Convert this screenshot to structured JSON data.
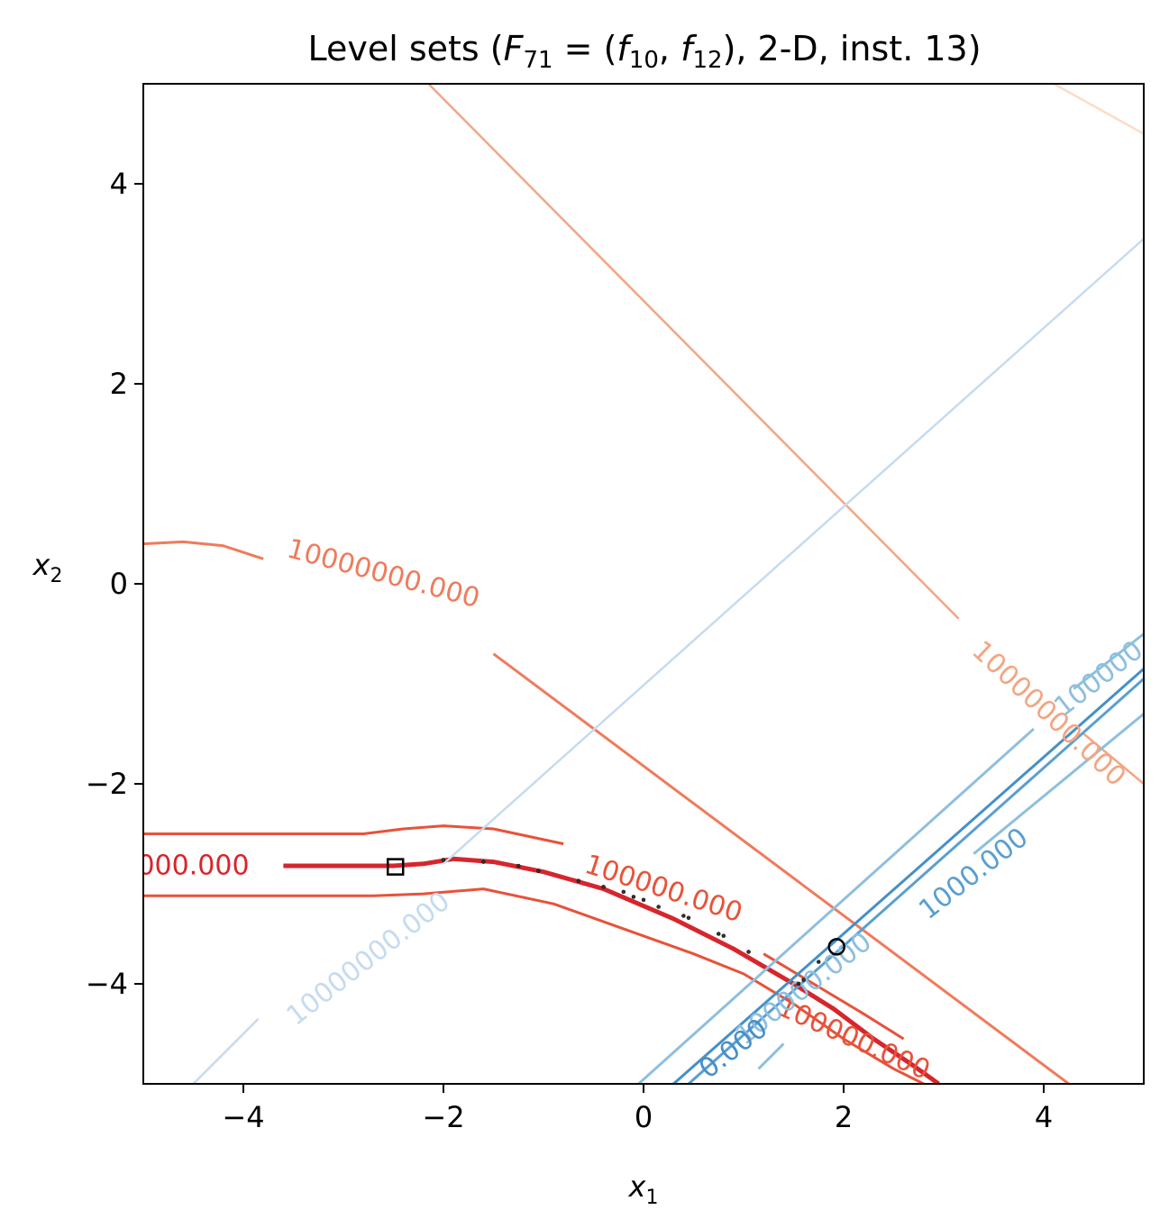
{
  "chart_data": {
    "type": "line",
    "title": {
      "prefix": "Level sets (",
      "F": "F",
      "F_sub": "71",
      "eq": " = (",
      "f1": "f",
      "f1_sub": "10",
      "comma": ", ",
      "f2": "f",
      "f2_sub": "12",
      "suffix": "), 2-D, inst. 13)"
    },
    "xlabel": {
      "var": "x",
      "sub": "1"
    },
    "ylabel": {
      "var": "x",
      "sub": "2"
    },
    "xlim": [
      -5,
      5
    ],
    "ylim": [
      -5,
      5
    ],
    "xticks": [
      -4,
      -2,
      0,
      2,
      4
    ],
    "yticks": [
      -4,
      -2,
      0,
      2,
      4
    ],
    "tick_labels_x": [
      "−4",
      "−2",
      "0",
      "2",
      "4"
    ],
    "tick_labels_y": [
      "−4",
      "−2",
      "0",
      "2",
      "4"
    ],
    "grid": false,
    "series": [
      {
        "group": "f12",
        "color": "#fddbc7",
        "width": 2.5,
        "points": [
          [
            4.1,
            5.0
          ],
          [
            5.0,
            4.5
          ]
        ]
      },
      {
        "group": "f12",
        "color": "#f4a582",
        "width": 2.5,
        "points": [
          [
            -2.15,
            5.0
          ],
          [
            3.15,
            -0.35
          ]
        ]
      },
      {
        "group": "f12",
        "color": "#f4a582",
        "width": 2.5,
        "points": [
          [
            4.4,
            -1.5
          ],
          [
            5.0,
            -2.0
          ]
        ]
      },
      {
        "group": "f12",
        "color": "#ef7b5b",
        "width": 3,
        "points": [
          [
            -5.0,
            0.4
          ],
          [
            -4.6,
            0.42
          ],
          [
            -4.2,
            0.38
          ],
          [
            -3.8,
            0.25
          ]
        ]
      },
      {
        "group": "f12",
        "color": "#ef7b5b",
        "width": 3,
        "points": [
          [
            -1.5,
            -0.7
          ],
          [
            4.25,
            -5.0
          ]
        ]
      },
      {
        "group": "f12",
        "color": "#e8523a",
        "width": 3,
        "points": [
          [
            -5.0,
            -2.5
          ],
          [
            -2.8,
            -2.5
          ],
          [
            -2.4,
            -2.45
          ],
          [
            -2.0,
            -2.42
          ],
          [
            -1.5,
            -2.45
          ],
          [
            -0.8,
            -2.6
          ]
        ]
      },
      {
        "group": "f12",
        "color": "#e8523a",
        "width": 3,
        "points": [
          [
            1.2,
            -3.7
          ],
          [
            1.7,
            -4.0
          ],
          [
            2.2,
            -4.3
          ],
          [
            2.6,
            -4.55
          ]
        ]
      },
      {
        "group": "f12",
        "color": "#e8523a",
        "width": 3,
        "points": [
          [
            -5.0,
            -3.12
          ],
          [
            -2.7,
            -3.12
          ],
          [
            -2.2,
            -3.1
          ],
          [
            -1.6,
            -3.05
          ],
          [
            -0.9,
            -3.2
          ],
          [
            -0.2,
            -3.45
          ],
          [
            0.5,
            -3.7
          ],
          [
            1.0,
            -3.9
          ],
          [
            1.5,
            -4.2
          ],
          [
            2.0,
            -4.55
          ],
          [
            2.5,
            -4.85
          ],
          [
            2.8,
            -5.0
          ]
        ]
      },
      {
        "group": "f12",
        "color": "#d6262d",
        "width": 5,
        "points": [
          [
            -3.6,
            -2.82
          ],
          [
            -2.5,
            -2.82
          ],
          [
            -2.2,
            -2.8
          ],
          [
            -1.9,
            -2.75
          ],
          [
            -1.5,
            -2.78
          ],
          [
            -1.0,
            -2.88
          ],
          [
            -0.4,
            -3.05
          ],
          [
            0.3,
            -3.35
          ],
          [
            0.9,
            -3.65
          ],
          [
            1.5,
            -4.0
          ],
          [
            1.9,
            -4.25
          ],
          [
            2.3,
            -4.55
          ],
          [
            2.7,
            -4.82
          ],
          [
            2.95,
            -5.0
          ]
        ]
      },
      {
        "group": "f10",
        "color": "#c6dbef",
        "width": 2.5,
        "points": [
          [
            -4.5,
            -5.0
          ],
          [
            -3.85,
            -4.35
          ]
        ]
      },
      {
        "group": "f10",
        "color": "#c6dbef",
        "width": 2.5,
        "points": [
          [
            -2.0,
            -2.8
          ],
          [
            5.0,
            3.45
          ]
        ]
      },
      {
        "group": "f10",
        "color": "#8ebfde",
        "width": 3,
        "points": [
          [
            -0.05,
            -5.0
          ],
          [
            3.9,
            -1.45
          ]
        ]
      },
      {
        "group": "f10",
        "color": "#8ebfde",
        "width": 3,
        "points": [
          [
            4.3,
            -1.05
          ],
          [
            5.0,
            -0.5
          ]
        ]
      },
      {
        "group": "f10",
        "color": "#8ebfde",
        "width": 3,
        "points": [
          [
            1.15,
            -4.85
          ],
          [
            1.4,
            -4.6
          ]
        ]
      },
      {
        "group": "f10",
        "color": "#8ebfde",
        "width": 3,
        "points": [
          [
            3.3,
            -2.7
          ],
          [
            5.0,
            -1.3
          ]
        ]
      },
      {
        "group": "f10",
        "color": "#5a9fd0",
        "width": 3,
        "points": [
          [
            0.45,
            -5.0
          ],
          [
            5.0,
            -0.95
          ]
        ]
      },
      {
        "group": "f10",
        "color": "#4590c8",
        "width": 3,
        "points": [
          [
            0.3,
            -5.0
          ],
          [
            5.0,
            -0.85
          ]
        ]
      }
    ],
    "contour_labels": [
      {
        "text": "10000000.000",
        "color": "#f4a582",
        "x": 4.05,
        "y": -1.3,
        "angle": 43
      },
      {
        "text": "10000000.000",
        "color": "#ef7b5b",
        "x": -2.6,
        "y": 0.1,
        "angle": 15
      },
      {
        "text": "000.000",
        "color": "#d6262d",
        "x": -4.5,
        "y": -2.82,
        "angle": 0
      },
      {
        "text": "100000.000",
        "color": "#e8523a",
        "x": 0.2,
        "y": -3.05,
        "angle": 18
      },
      {
        "text": "100000.000",
        "color": "#e8523a",
        "x": 2.1,
        "y": -4.55,
        "angle": 24
      },
      {
        "text": "10000000.000",
        "color": "#c6dbef",
        "x": -2.75,
        "y": -3.75,
        "angle": -38
      },
      {
        "text": "100000",
        "color": "#8ebfde",
        "x": 4.55,
        "y": -0.95,
        "angle": -38
      },
      {
        "text": "1000.000",
        "color": "#5a9fd0",
        "x": 3.3,
        "y": -2.9,
        "angle": -38
      },
      {
        "text": "100000.000",
        "color": "#8ebfde",
        "x": 1.6,
        "y": -4.05,
        "angle": -38
      },
      {
        "text": "0.000",
        "color": "#4590c8",
        "x": 0.9,
        "y": -4.65,
        "angle": -38
      }
    ],
    "path_points": [
      [
        -2.0,
        -2.76
      ],
      [
        -1.6,
        -2.78
      ],
      [
        -1.25,
        -2.82
      ],
      [
        -1.05,
        -2.87
      ],
      [
        -0.65,
        -2.97
      ],
      [
        -0.4,
        -3.03
      ],
      [
        -0.2,
        -3.08
      ],
      [
        -0.1,
        -3.13
      ],
      [
        0.0,
        -3.16
      ],
      [
        0.15,
        -3.23
      ],
      [
        0.4,
        -3.32
      ],
      [
        0.45,
        -3.34
      ],
      [
        0.75,
        -3.5
      ],
      [
        0.8,
        -3.52
      ],
      [
        1.05,
        -3.68
      ],
      [
        1.6,
        -3.96
      ],
      [
        1.55,
        -4.0
      ],
      [
        1.75,
        -3.78
      ]
    ],
    "markers": [
      {
        "shape": "square",
        "x": -2.48,
        "y": -2.83
      },
      {
        "shape": "circle",
        "x": 1.93,
        "y": -3.63
      }
    ]
  }
}
